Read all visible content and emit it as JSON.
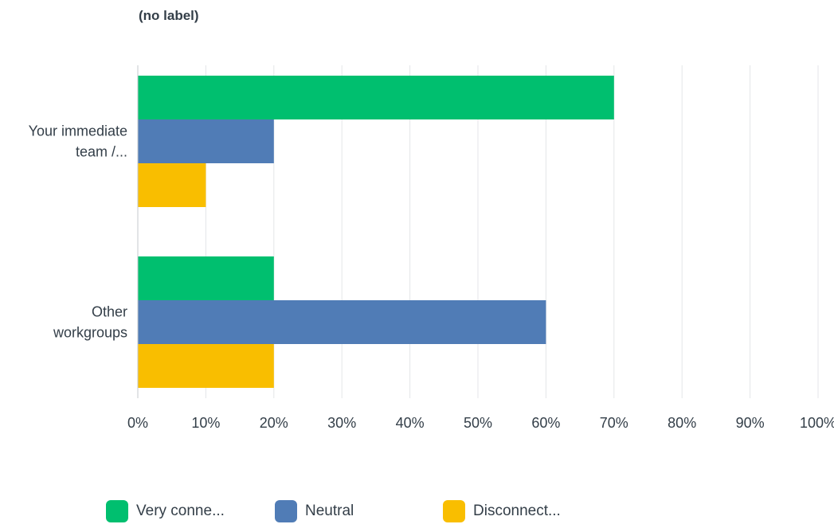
{
  "chart_data": {
    "type": "bar",
    "orientation": "horizontal",
    "title": "(no label)",
    "categories": [
      [
        "Your immediate",
        "team /..."
      ],
      [
        "Other",
        "workgroups"
      ]
    ],
    "series": [
      {
        "name": "Very conne...",
        "color": "#00bf6f",
        "values": [
          70,
          20
        ]
      },
      {
        "name": "Neutral",
        "color": "#507cb6",
        "values": [
          20,
          60
        ]
      },
      {
        "name": "Disconnect...",
        "color": "#f9be00",
        "values": [
          10,
          20
        ]
      }
    ],
    "xlim": [
      0,
      100
    ],
    "xticks": [
      0,
      10,
      20,
      30,
      40,
      50,
      60,
      70,
      80,
      90,
      100
    ],
    "xtick_labels": [
      "0%",
      "10%",
      "20%",
      "30%",
      "40%",
      "50%",
      "60%",
      "70%",
      "80%",
      "90%",
      "100%"
    ],
    "grid": true,
    "legend_position": "bottom"
  }
}
